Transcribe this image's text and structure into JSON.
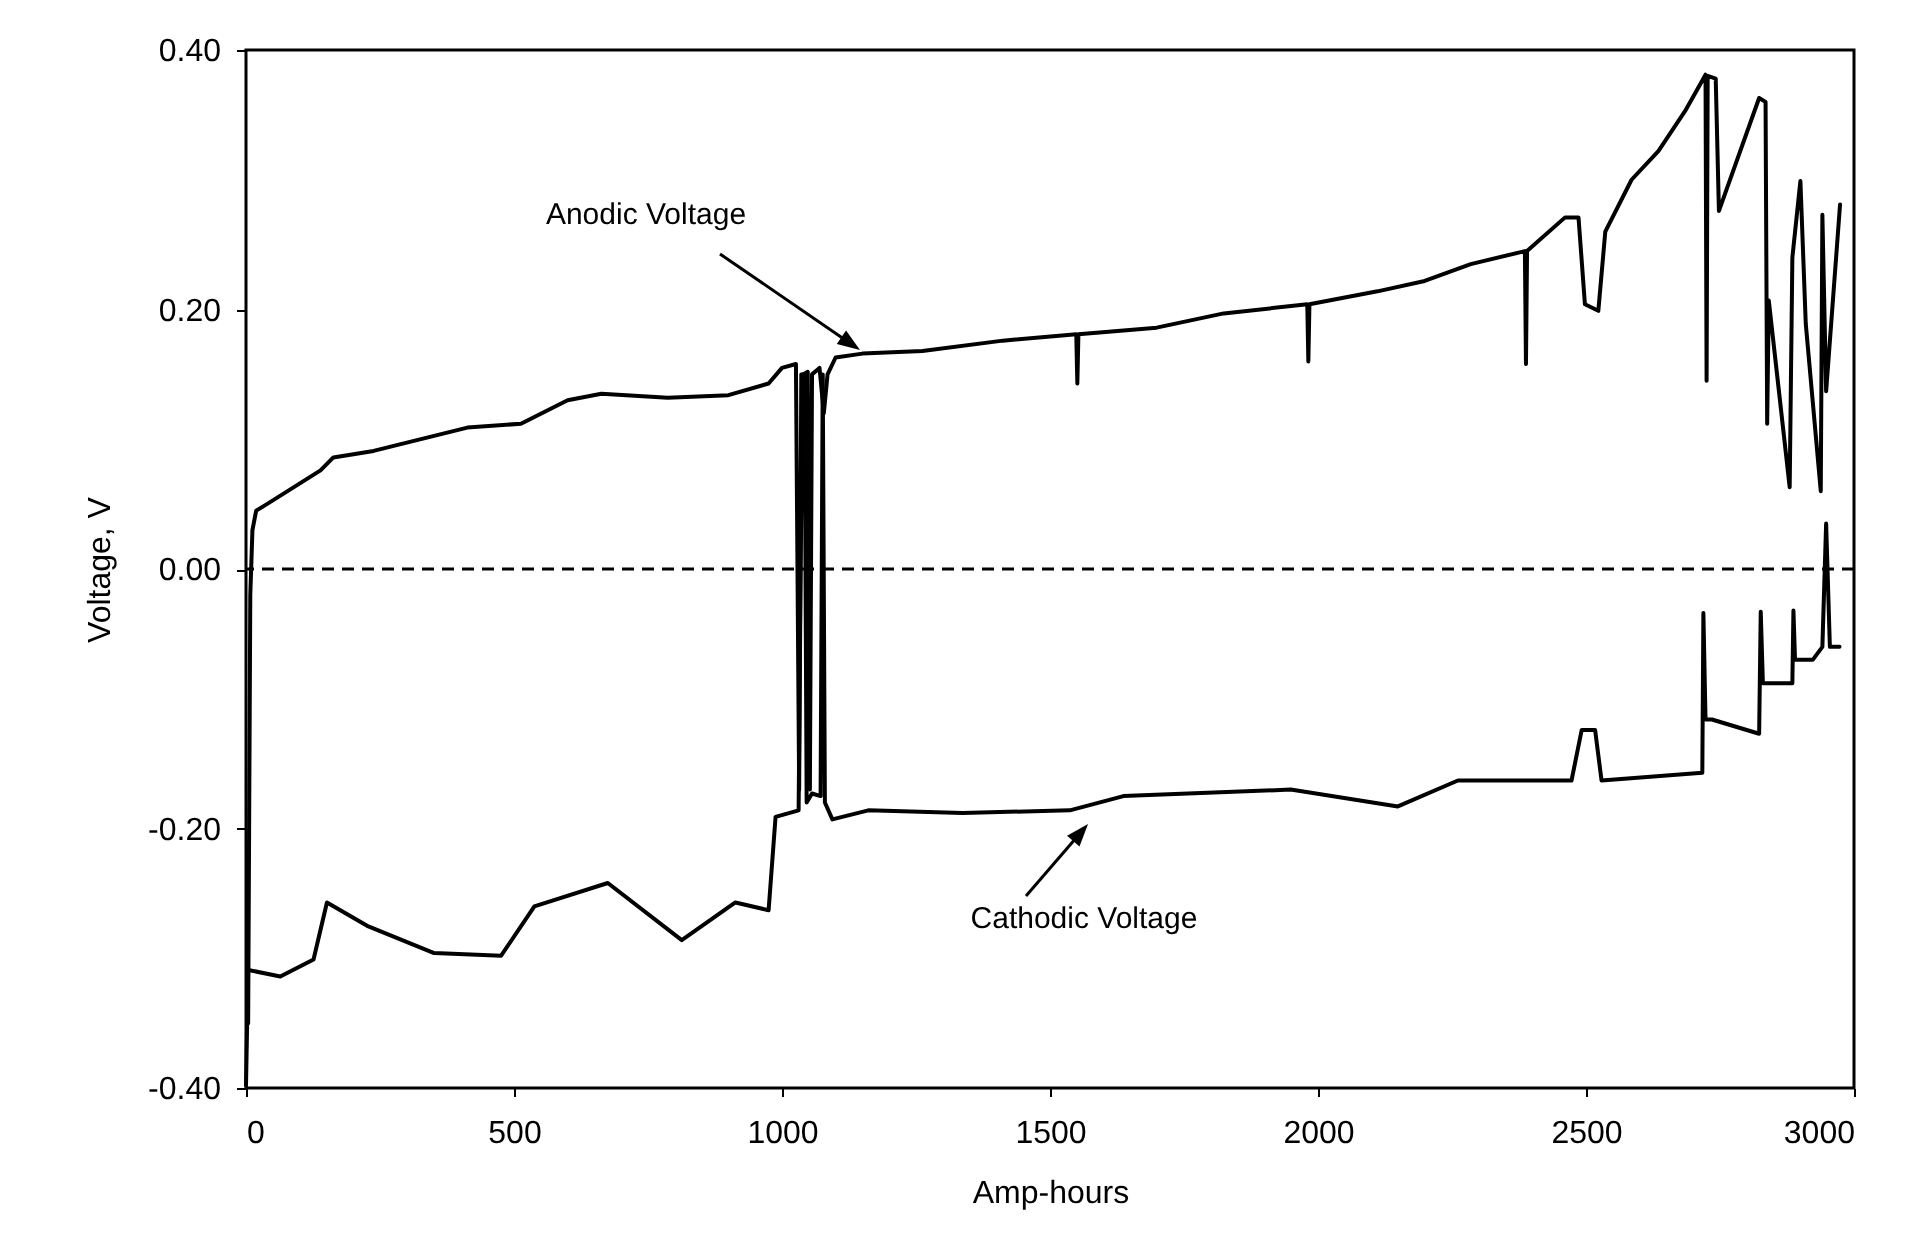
{
  "chart_data": {
    "type": "line",
    "xlabel": "Amp-hours",
    "ylabel": "Voltage, V",
    "xlim": [
      0,
      3000
    ],
    "xticks": [
      0,
      500,
      1000,
      1500,
      2000,
      2500,
      3000
    ],
    "ylim": [
      -0.4,
      0.4
    ],
    "yticks": [
      {
        "value": -0.4,
        "label": "-0.40"
      },
      {
        "value": -0.2,
        "label": "-0.20"
      },
      {
        "value": 0,
        "label": "0.00"
      },
      {
        "value": 0.2,
        "label": "0.20"
      },
      {
        "value": 0.4,
        "label": "0.40"
      }
    ],
    "grid": false,
    "marker": "none",
    "line_style": "solid",
    "ref_lines": [
      {
        "axis": "y",
        "value": 0,
        "line_style": "dashed",
        "color": "#000000"
      }
    ],
    "annotations": [
      "Anodic Voltage",
      "Cathodic Voltage"
    ],
    "series": [
      {
        "color": "#000000",
        "x": [
          4,
          8,
          12,
          19,
          39,
          139,
          163,
          238,
          413,
          513,
          600,
          663,
          787,
          900,
          975,
          1000,
          1026,
          1032,
          1036,
          1040,
          1048,
          1052,
          1056,
          1070,
          1078,
          1085,
          1100,
          1150,
          1262,
          1412,
          1549,
          1551,
          1553,
          1699,
          1824,
          1980,
          1982,
          1984,
          2111,
          2199,
          2285,
          2386,
          2388,
          2390,
          2461,
          2486,
          2498,
          2523,
          2536,
          2585,
          2635,
          2685,
          2723,
          2725,
          2727,
          2742,
          2748,
          2823,
          2835,
          2838,
          2841,
          2880,
          2885,
          2900,
          2910,
          2938,
          2941,
          2948,
          2974
        ],
        "values": [
          -0.35,
          -0.02,
          0.03,
          0.045,
          0.05,
          0.076,
          0.086,
          0.091,
          0.109,
          0.112,
          0.13,
          0.135,
          0.132,
          0.134,
          0.143,
          0.155,
          0.158,
          -0.17,
          0.15,
          0.15,
          0.152,
          -0.17,
          0.15,
          0.155,
          0.12,
          0.15,
          0.163,
          0.166,
          0.168,
          0.176,
          0.181,
          0.143,
          0.181,
          0.186,
          0.197,
          0.204,
          0.16,
          0.204,
          0.214,
          0.222,
          0.235,
          0.245,
          0.158,
          0.245,
          0.271,
          0.271,
          0.204,
          0.199,
          0.26,
          0.3,
          0.322,
          0.353,
          0.381,
          0.145,
          0.38,
          0.378,
          0.276,
          0.363,
          0.36,
          0.112,
          0.207,
          0.063,
          0.24,
          0.299,
          0.189,
          0.06,
          0.273,
          0.137,
          0.281
        ]
      },
      {
        "color": "#000000",
        "x": [
          0,
          4,
          64,
          126,
          151,
          226,
          351,
          476,
          538,
          675,
          813,
          913,
          975,
          988,
          1031,
          1038,
          1042,
          1046,
          1056,
          1072,
          1076,
          1080,
          1094,
          1161,
          1337,
          1537,
          1637,
          1949,
          2149,
          2261,
          2473,
          2492,
          2517,
          2529,
          2717,
          2719,
          2723,
          2735,
          2823,
          2826,
          2830,
          2841,
          2885,
          2887,
          2890,
          2923,
          2941,
          2948,
          2955,
          2973
        ],
        "values": [
          -0.398,
          -0.309,
          -0.314,
          -0.301,
          -0.257,
          -0.275,
          -0.296,
          -0.298,
          -0.26,
          -0.242,
          -0.286,
          -0.257,
          -0.263,
          -0.191,
          -0.186,
          0.15,
          0.15,
          -0.18,
          -0.173,
          -0.175,
          0.15,
          -0.18,
          -0.193,
          -0.186,
          -0.188,
          -0.186,
          -0.175,
          -0.17,
          -0.183,
          -0.163,
          -0.163,
          -0.124,
          -0.124,
          -0.163,
          -0.157,
          -0.034,
          -0.116,
          -0.116,
          -0.127,
          -0.033,
          -0.088,
          -0.088,
          -0.088,
          -0.032,
          -0.07,
          -0.07,
          -0.06,
          0.035,
          -0.06,
          -0.06
        ]
      }
    ]
  }
}
